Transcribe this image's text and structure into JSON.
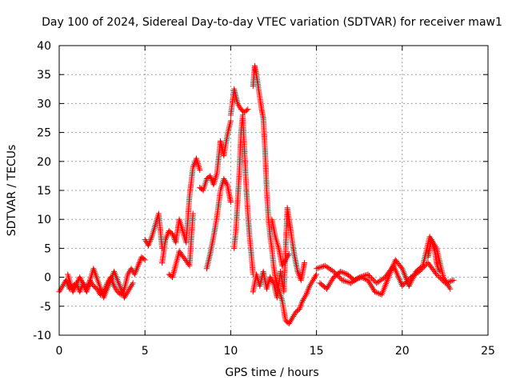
{
  "chart_data": {
    "type": "scatter",
    "title": "Day 100 of 2024, Sidereal Day-to-day VTEC variation (SDTVAR) for receiver maw1",
    "xlabel": "GPS time / hours",
    "ylabel": "SDTVAR / TECUs",
    "xlim": [
      0,
      25
    ],
    "ylim": [
      -10,
      40
    ],
    "xticks": [
      0,
      5,
      10,
      15,
      20,
      25
    ],
    "yticks": [
      -10,
      -5,
      0,
      5,
      10,
      15,
      20,
      25,
      30,
      35,
      40
    ],
    "grid": true,
    "marker": "plus",
    "series": [
      {
        "name": "maw1",
        "color": "#ff0000",
        "segments": [
          {
            "x": [
              0.0,
              0.2,
              0.4,
              0.6,
              0.8,
              1.0,
              1.2,
              1.4,
              1.6,
              1.8,
              2.0,
              2.2,
              2.4,
              2.6,
              2.8,
              3.0,
              3.2,
              3.4,
              3.6,
              3.8,
              4.0,
              4.2,
              4.4,
              4.6,
              4.8,
              5.0
            ],
            "y": [
              -2.5,
              -1.5,
              -0.5,
              -2.0,
              -1.5,
              -1.0,
              -2.5,
              -1.0,
              -2.0,
              -0.5,
              -1.5,
              -2.0,
              -3.0,
              -2.5,
              -1.0,
              0.0,
              -1.5,
              -2.5,
              -3.0,
              -2.0,
              0.5,
              1.5,
              0.5,
              2.0,
              3.5,
              3.0
            ]
          },
          {
            "x": [
              0.5,
              0.8,
              1.2,
              1.6,
              2.0,
              2.6,
              3.2,
              3.8,
              4.3
            ],
            "y": [
              0.5,
              -2.5,
              0.0,
              -2.5,
              1.5,
              -3.5,
              1.0,
              -3.5,
              -1.0
            ]
          },
          {
            "x": [
              5.0,
              5.2,
              5.4,
              5.6,
              5.8,
              6.0
            ],
            "y": [
              6.5,
              5.5,
              7.0,
              9.0,
              11.0,
              5.0
            ]
          },
          {
            "x": [
              6.0,
              6.2,
              6.4,
              6.6,
              6.8,
              7.0,
              7.2,
              7.4,
              7.6,
              7.8,
              8.0,
              8.2
            ],
            "y": [
              2.5,
              6.5,
              8.0,
              7.5,
              6.0,
              10.0,
              8.0,
              6.0,
              14.0,
              19.0,
              20.5,
              18.5
            ]
          },
          {
            "x": [
              6.4,
              6.6,
              7.0,
              7.6,
              7.8
            ],
            "y": [
              0.5,
              0.0,
              4.5,
              2.0,
              11.0
            ]
          },
          {
            "x": [
              8.2,
              8.4,
              8.6,
              8.8,
              9.0,
              9.2,
              9.4,
              9.6,
              9.8,
              10.0
            ],
            "y": [
              15.5,
              15.0,
              17.0,
              17.5,
              16.0,
              18.0,
              23.5,
              21.0,
              24.5,
              27.0
            ]
          },
          {
            "x": [
              8.6,
              8.8,
              9.0,
              9.2,
              9.4,
              9.6,
              9.8,
              10.0
            ],
            "y": [
              1.5,
              4.0,
              7.0,
              10.5,
              15.0,
              17.0,
              16.0,
              13.0
            ]
          },
          {
            "x": [
              10.0,
              10.2,
              10.4,
              10.6,
              10.8,
              11.0
            ],
            "y": [
              28.0,
              32.5,
              30.0,
              29.0,
              28.5,
              29.0
            ]
          },
          {
            "x": [
              10.2,
              10.3,
              10.4,
              10.5,
              10.6,
              10.7,
              10.8,
              10.9,
              11.0,
              11.1,
              11.2,
              11.3
            ],
            "y": [
              5.0,
              8.0,
              13.0,
              18.0,
              25.0,
              28.0,
              22.0,
              16.0,
              11.0,
              7.0,
              4.0,
              0.5
            ]
          },
          {
            "x": [
              11.3,
              11.4,
              11.5,
              11.6,
              11.7,
              11.8,
              11.9,
              12.0,
              12.1,
              12.2,
              12.3,
              12.4,
              12.5,
              12.6,
              12.8,
              13.0,
              13.2,
              13.4,
              13.6,
              13.8,
              14.0,
              14.2,
              14.4,
              14.6,
              14.8,
              15.0
            ],
            "y": [
              33.0,
              36.5,
              35.0,
              33.0,
              31.0,
              29.0,
              27.5,
              22.0,
              15.0,
              10.0,
              7.0,
              5.0,
              2.0,
              0.0,
              -2.0,
              -4.0,
              -7.5,
              -8.0,
              -7.0,
              -6.0,
              -5.5,
              -4.0,
              -3.0,
              -1.5,
              -0.5,
              0.5
            ]
          },
          {
            "x": [
              11.3,
              11.5,
              11.7,
              11.9,
              12.1,
              12.3,
              12.5,
              12.7,
              12.9,
              13.1,
              13.3,
              13.5,
              13.7,
              13.9,
              14.1,
              14.3
            ],
            "y": [
              -2.5,
              0.5,
              -1.5,
              1.0,
              -2.0,
              0.0,
              -1.0,
              -3.5,
              1.0,
              -2.5,
              12.0,
              8.0,
              4.0,
              1.0,
              -0.5,
              2.5
            ]
          },
          {
            "x": [
              12.4,
              12.6,
              12.8,
              13.0,
              13.2,
              13.4
            ],
            "y": [
              10.0,
              7.0,
              5.0,
              2.0,
              3.0,
              4.0
            ]
          },
          {
            "x": [
              15.0,
              15.5,
              16.0,
              16.5,
              17.0,
              17.5,
              18.0,
              18.5,
              19.0,
              19.5,
              20.0,
              20.5,
              21.0,
              21.5,
              22.0,
              22.5,
              23.0
            ],
            "y": [
              1.5,
              2.0,
              1.0,
              -0.5,
              -1.0,
              0.0,
              0.5,
              -1.0,
              0.0,
              2.0,
              -1.5,
              0.0,
              1.0,
              2.5,
              0.5,
              -1.0,
              -0.5
            ]
          },
          {
            "x": [
              15.2,
              15.6,
              16.0,
              16.4,
              16.8,
              17.2,
              17.6,
              18.0,
              18.4,
              18.8,
              19.2,
              19.6,
              20.0,
              20.4,
              20.8,
              21.2,
              21.6,
              22.0,
              22.4,
              22.8
            ],
            "y": [
              -1.0,
              -2.0,
              0.0,
              1.0,
              0.5,
              -0.5,
              0.0,
              -0.5,
              -2.5,
              -3.0,
              0.0,
              3.0,
              1.5,
              -1.5,
              1.0,
              2.0,
              7.0,
              5.0,
              0.0,
              -2.0
            ]
          },
          {
            "x": [
              21.5,
              21.6,
              21.7,
              21.8,
              21.9,
              22.0,
              22.1,
              22.2
            ],
            "y": [
              3.5,
              5.0,
              6.5,
              5.5,
              4.5,
              2.5,
              1.5,
              1.0
            ]
          }
        ]
      }
    ]
  }
}
